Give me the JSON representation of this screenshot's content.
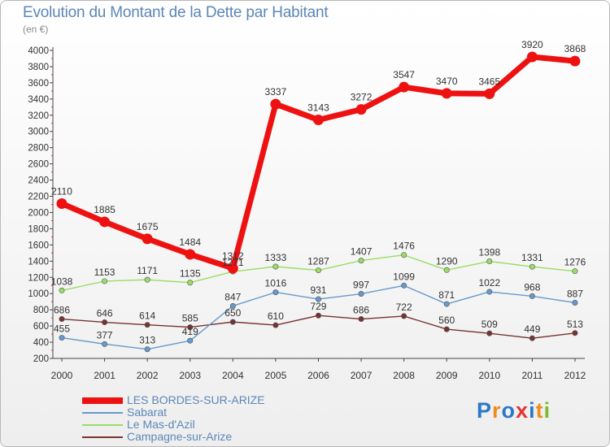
{
  "chart_data": {
    "type": "line",
    "title": "Evolution du Montant de la Dette par Habitant",
    "subtitle": "(en €)",
    "xlabel": "",
    "ylabel": "",
    "categories": [
      "2000",
      "2001",
      "2002",
      "2003",
      "2004",
      "2005",
      "2006",
      "2007",
      "2008",
      "2009",
      "2010",
      "2011",
      "2012"
    ],
    "y_ticks": [
      "200",
      "400",
      "600",
      "800",
      "1000",
      "1200",
      "1400",
      "1600",
      "1800",
      "2000",
      "2200",
      "2400",
      "2600",
      "2800",
      "3000",
      "3200",
      "3400",
      "3600",
      "3800",
      "4000"
    ],
    "ylim": [
      200,
      4000
    ],
    "grid": false,
    "legend_position": "bottom-left",
    "series": [
      {
        "name": "LES BORDES-SUR-ARIZE",
        "color": "#ee1111",
        "values": [
          2110,
          1885,
          1675,
          1484,
          1312,
          3337,
          3143,
          3272,
          3547,
          3470,
          3465,
          3920,
          3868
        ]
      },
      {
        "name": "Sabarat",
        "color": "#6699cc",
        "values": [
          455,
          377,
          313,
          419,
          847,
          1016,
          931,
          997,
          1099,
          871,
          1022,
          968,
          887
        ]
      },
      {
        "name": "Le Mas-d'Azil",
        "color": "#99dd66",
        "values": [
          1038,
          1153,
          1171,
          1135,
          1271,
          1333,
          1287,
          1407,
          1476,
          1290,
          1398,
          1331,
          1276
        ]
      },
      {
        "name": "Campagne-sur-Arize",
        "color": "#773333",
        "values": [
          686,
          646,
          614,
          585,
          650,
          610,
          729,
          686,
          722,
          560,
          509,
          449,
          513
        ]
      }
    ]
  },
  "logo": {
    "letters": [
      "P",
      "r",
      "o",
      "x",
      "i",
      "t",
      "i"
    ],
    "colors": [
      "#2a79c9",
      "#f08c1e",
      "#2a79c9",
      "#e63232",
      "#2a79c9",
      "#f08c1e",
      "#7cbb2c"
    ]
  }
}
